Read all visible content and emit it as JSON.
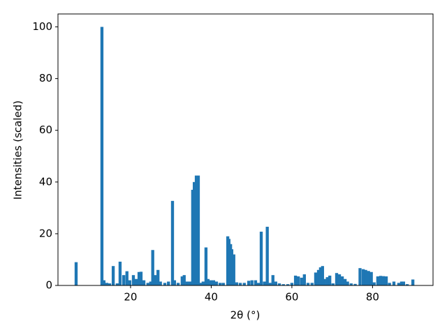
{
  "chart_data": {
    "type": "bar",
    "x_label": "2θ (°)",
    "y_label": "Intensities (scaled)",
    "color": "#1f77b4",
    "x": [
      6.5,
      12.9,
      13.4,
      14.1,
      14.8,
      15.7,
      16.7,
      17.4,
      18.3,
      19.1,
      19.8,
      20.7,
      21.4,
      22.1,
      22.6,
      23.3,
      24.3,
      25.0,
      25.5,
      26.1,
      26.8,
      27.4,
      28.5,
      29.4,
      30.4,
      30.9,
      31.8,
      32.8,
      33.3,
      34.0,
      34.7,
      35.4,
      35.8,
      36.3,
      36.8,
      37.5,
      38.0,
      38.7,
      39.2,
      39.9,
      40.6,
      41.3,
      42.2,
      43.0,
      44.1,
      44.4,
      44.8,
      45.1,
      45.6,
      46.3,
      47.2,
      48.2,
      49.3,
      50.1,
      51.0,
      51.7,
      52.4,
      53.2,
      53.9,
      54.6,
      55.3,
      56.0,
      56.9,
      57.9,
      59.0,
      60.0,
      60.9,
      61.6,
      62.4,
      63.1,
      64.0,
      65.0,
      65.9,
      66.6,
      67.1,
      67.6,
      68.1,
      68.8,
      69.4,
      70.2,
      71.1,
      71.8,
      72.5,
      73.2,
      73.8,
      74.7,
      75.7,
      76.9,
      77.7,
      78.3,
      79.0,
      79.7,
      80.4,
      81.3,
      82.0,
      82.7,
      83.4,
      84.2,
      85.3,
      86.5,
      87.2,
      87.7,
      88.6,
      90.0
    ],
    "values": [
      9,
      100,
      2,
      1,
      0.8,
      7.5,
      0.8,
      9.2,
      4,
      5.5,
      2,
      4,
      2.5,
      5.2,
      5.3,
      2,
      1,
      1.5,
      13.7,
      4,
      6,
      1.5,
      1,
      1.5,
      32.7,
      2,
      1,
      3.5,
      4,
      1.5,
      1.5,
      37,
      40,
      42.5,
      42.5,
      1,
      1.5,
      14.7,
      2.5,
      2,
      2,
      1.5,
      1,
      1,
      19,
      18,
      16,
      14,
      12,
      1.2,
      1,
      1,
      1.8,
      2,
      2,
      1,
      20.8,
      1.5,
      22.7,
      1,
      4,
      1.5,
      0.8,
      0.5,
      0.5,
      1,
      3.8,
      3.5,
      3,
      4.3,
      1,
      1,
      5,
      6,
      7,
      7.5,
      2.5,
      3.2,
      3.8,
      0.8,
      4.8,
      4.3,
      3.5,
      2.5,
      1.5,
      0.8,
      0.6,
      6.7,
      6.3,
      6,
      5.6,
      5.2,
      1.2,
      3.5,
      3.7,
      3.6,
      3.5,
      1,
      1.5,
      1,
      1.5,
      1.5,
      0.5,
      2.3
    ],
    "xlim": [
      2,
      95
    ],
    "ylim": [
      0,
      105
    ],
    "xticks": [
      20,
      40,
      60,
      80
    ],
    "yticks": [
      0,
      20,
      40,
      60,
      80,
      100
    ],
    "grid": false
  }
}
